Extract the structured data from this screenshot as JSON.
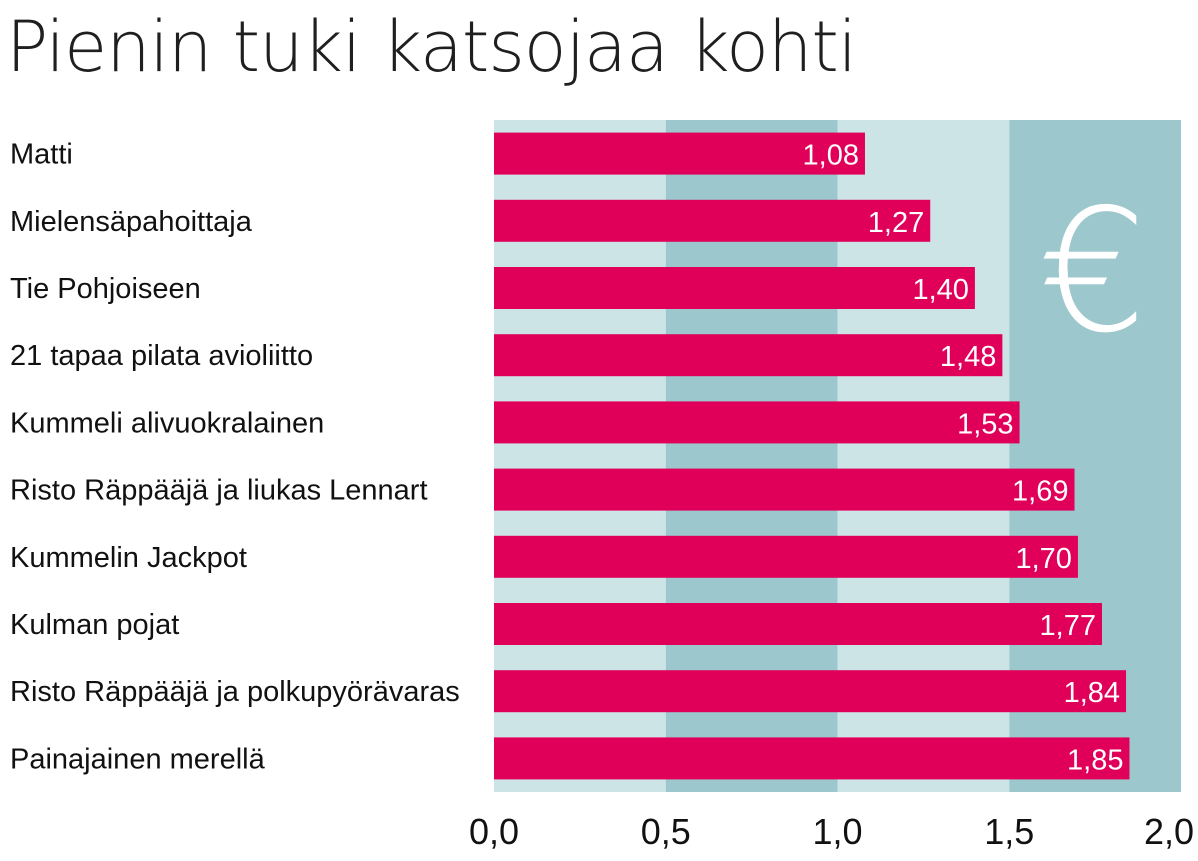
{
  "chart_data": {
    "type": "bar",
    "orientation": "horizontal",
    "title": "Pienin tuki katsojaa kohti",
    "xlim": [
      0,
      2
    ],
    "xticks": [
      "0,0",
      "0,5",
      "1,0",
      "1,5",
      "2,0"
    ],
    "xtick_values": [
      0,
      0.5,
      1.0,
      1.5,
      2.0
    ],
    "categories": [
      "Matti",
      "Mielensäpahoittaja",
      "Tie Pohjoiseen",
      "21 tapaa pilata avioliitto",
      "Kummeli alivuokralainen",
      "Risto Räppääjä ja liukas Lennart",
      "Kummelin Jackpot",
      "Kulman pojat",
      "Risto Räppääjä ja polkupyörävaras",
      "Painajainen merellä"
    ],
    "values": [
      1.08,
      1.27,
      1.4,
      1.48,
      1.53,
      1.69,
      1.7,
      1.77,
      1.84,
      1.85
    ],
    "value_labels": [
      "1,08",
      "1,27",
      "1,40",
      "1,48",
      "1,53",
      "1,69",
      "1,70",
      "1,77",
      "1,84",
      "1,85"
    ],
    "annotation": "€",
    "grid": "alternating bands",
    "colors": {
      "bar": "#e0005a",
      "band_light": "#cde4e7",
      "band_dark": "#9cc8cd",
      "text": "#111111",
      "value_text": "#ffffff"
    }
  }
}
